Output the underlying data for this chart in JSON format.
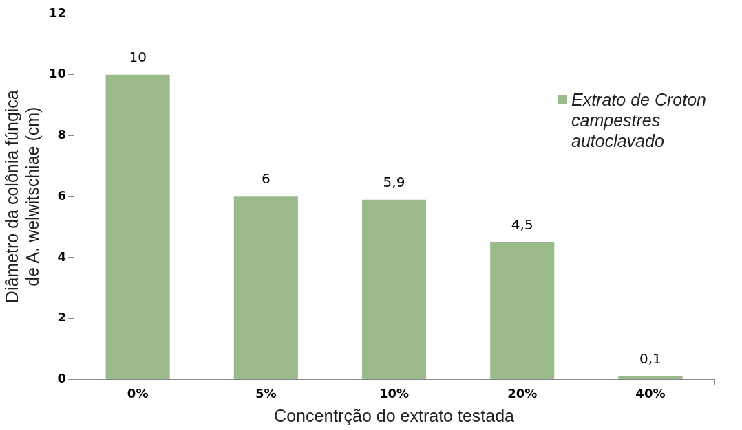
{
  "chart_data": {
    "type": "bar",
    "xlabel": "Concentrção do extrato testada",
    "ylabel": "Diâmetro da colônia fúngica de A. welwitschiae (cm)",
    "categories": [
      "0%",
      "5%",
      "10%",
      "20%",
      "40%"
    ],
    "series": [
      {
        "name": "Extrato de Croton campestres autoclavado",
        "color": "#9bbb8a",
        "values": [
          10,
          6,
          5.9,
          4.5,
          0.1
        ],
        "value_labels": [
          "10",
          "6",
          "5,9",
          "4,5",
          "0,1"
        ]
      }
    ],
    "ylim": [
      0,
      12
    ],
    "yticks": [
      0,
      2,
      4,
      6,
      8,
      10,
      12
    ],
    "grid": false,
    "legend": "top right"
  }
}
